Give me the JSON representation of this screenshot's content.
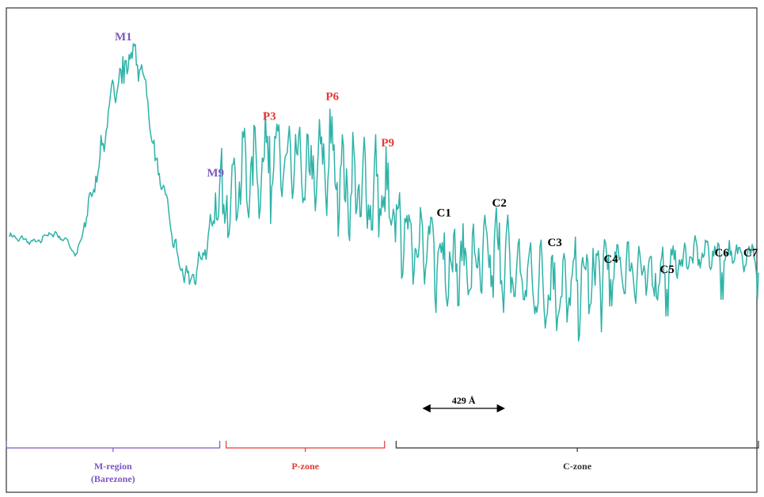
{
  "chart_data": {
    "type": "line",
    "title": "",
    "xlabel": "",
    "ylabel": "",
    "grid": false,
    "legend": "none",
    "trace_color": "#2fb3a8",
    "x_range": [
      0,
      1
    ],
    "y_range": [
      0,
      1
    ],
    "profile": [
      [
        0.0,
        0.48
      ],
      [
        0.035,
        0.46
      ],
      [
        0.055,
        0.49
      ],
      [
        0.075,
        0.47
      ],
      [
        0.09,
        0.42
      ],
      [
        0.105,
        0.56
      ],
      [
        0.12,
        0.7
      ],
      [
        0.135,
        0.88
      ],
      [
        0.15,
        1.0
      ],
      [
        0.165,
        1.03
      ],
      [
        0.18,
        0.96
      ],
      [
        0.195,
        0.7
      ],
      [
        0.21,
        0.58
      ],
      [
        0.225,
        0.4
      ],
      [
        0.24,
        0.34
      ],
      [
        0.255,
        0.4
      ],
      [
        0.272,
        0.53
      ],
      [
        0.285,
        0.55
      ],
      [
        0.3,
        0.65
      ],
      [
        0.32,
        0.67
      ],
      [
        0.345,
        0.71
      ],
      [
        0.375,
        0.69
      ],
      [
        0.405,
        0.66
      ],
      [
        0.425,
        0.72
      ],
      [
        0.45,
        0.63
      ],
      [
        0.475,
        0.61
      ],
      [
        0.5,
        0.6
      ],
      [
        0.52,
        0.5
      ],
      [
        0.54,
        0.48
      ],
      [
        0.56,
        0.43
      ],
      [
        0.59,
        0.4
      ],
      [
        0.62,
        0.39
      ],
      [
        0.65,
        0.42
      ],
      [
        0.675,
        0.37
      ],
      [
        0.7,
        0.34
      ],
      [
        0.72,
        0.33
      ],
      [
        0.735,
        0.31
      ],
      [
        0.76,
        0.33
      ],
      [
        0.785,
        0.36
      ],
      [
        0.805,
        0.39
      ],
      [
        0.835,
        0.38
      ],
      [
        0.86,
        0.35
      ],
      [
        0.885,
        0.4
      ],
      [
        0.91,
        0.42
      ],
      [
        0.935,
        0.43
      ],
      [
        0.96,
        0.42
      ],
      [
        0.98,
        0.43
      ],
      [
        1.0,
        0.42
      ]
    ],
    "peaks": [
      {
        "label": "M1",
        "x": 0.152,
        "y": 1.06,
        "zone": "m"
      },
      {
        "label": "M9",
        "x": 0.275,
        "y": 0.65,
        "zone": "m"
      },
      {
        "label": "P3",
        "x": 0.347,
        "y": 0.82,
        "zone": "p"
      },
      {
        "label": "P6",
        "x": 0.431,
        "y": 0.88,
        "zone": "p"
      },
      {
        "label": "P9",
        "x": 0.505,
        "y": 0.74,
        "zone": "p"
      },
      {
        "label": "C1",
        "x": 0.58,
        "y": 0.53,
        "zone": "c"
      },
      {
        "label": "C2",
        "x": 0.654,
        "y": 0.56,
        "zone": "c"
      },
      {
        "label": "C3",
        "x": 0.728,
        "y": 0.44,
        "zone": "c"
      },
      {
        "label": "C4",
        "x": 0.803,
        "y": 0.39,
        "zone": "c"
      },
      {
        "label": "C5",
        "x": 0.878,
        "y": 0.36,
        "zone": "c"
      },
      {
        "label": "C6",
        "x": 0.951,
        "y": 0.41,
        "zone": "c"
      },
      {
        "label": "C7",
        "x": 1.0,
        "y": 0.41,
        "zone": "c"
      }
    ],
    "period_marker": {
      "label": "429 Å",
      "x_start": 0.58,
      "x_end": 0.654
    },
    "zones": [
      {
        "key": "m",
        "name": "M-region",
        "sub": "(Barezone)",
        "color": "#7e57c2",
        "x_start": 0.0,
        "x_end": 0.285
      },
      {
        "key": "p",
        "name": "P-zone",
        "sub": "",
        "color": "#e53935",
        "x_start": 0.285,
        "x_end": 0.505
      },
      {
        "key": "c",
        "name": "C-zone",
        "sub": "",
        "color": "#333333",
        "x_start": 0.512,
        "x_end": 1.0
      }
    ]
  }
}
